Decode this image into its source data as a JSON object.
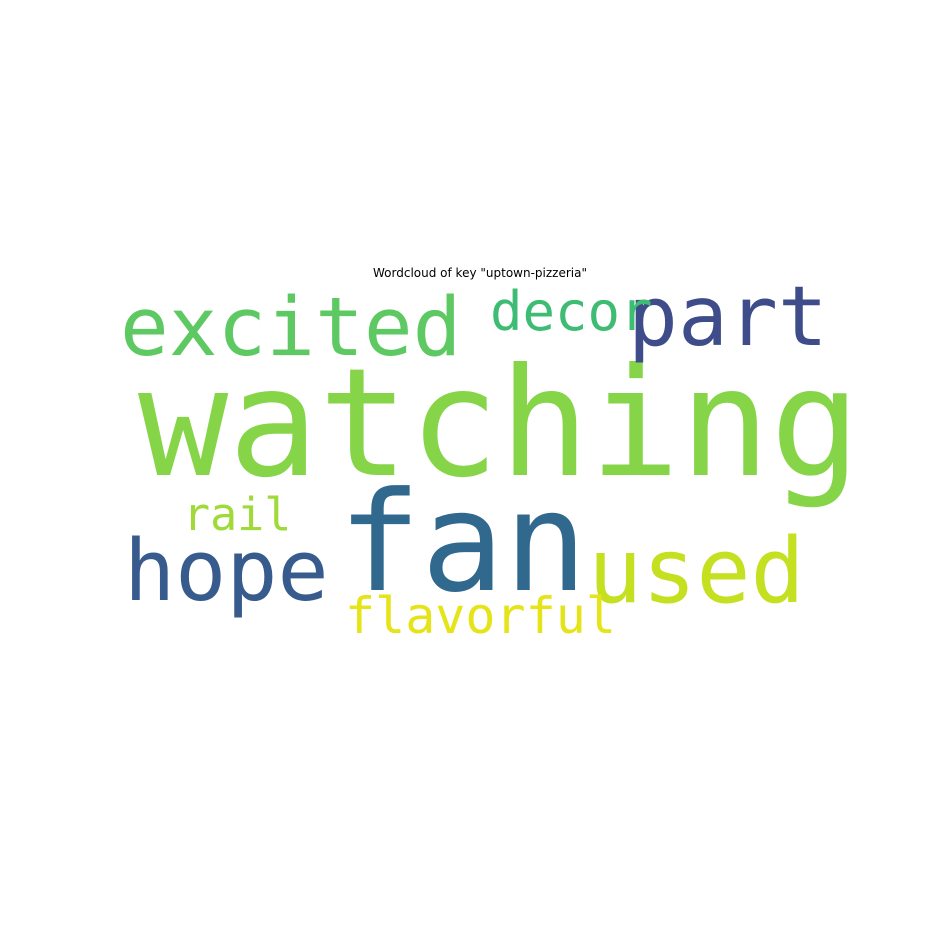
{
  "chart_data": {
    "type": "wordcloud",
    "title": "Wordcloud of key \"uptown-pizzeria\"",
    "words": [
      {
        "text": "watching",
        "weight": 1.0,
        "color": "#86d549"
      },
      {
        "text": "fan",
        "weight": 0.92,
        "color": "#31688e"
      },
      {
        "text": "used",
        "weight": 0.6,
        "color": "#c5e021"
      },
      {
        "text": "hope",
        "weight": 0.57,
        "color": "#375b8d"
      },
      {
        "text": "part",
        "weight": 0.55,
        "color": "#3e4c8a"
      },
      {
        "text": "excited",
        "weight": 0.54,
        "color": "#5ec962"
      },
      {
        "text": "decor",
        "weight": 0.36,
        "color": "#3fbc73"
      },
      {
        "text": "flavorful",
        "weight": 0.33,
        "color": "#e5e419"
      },
      {
        "text": "rail",
        "weight": 0.3,
        "color": "#a0da39"
      }
    ]
  }
}
